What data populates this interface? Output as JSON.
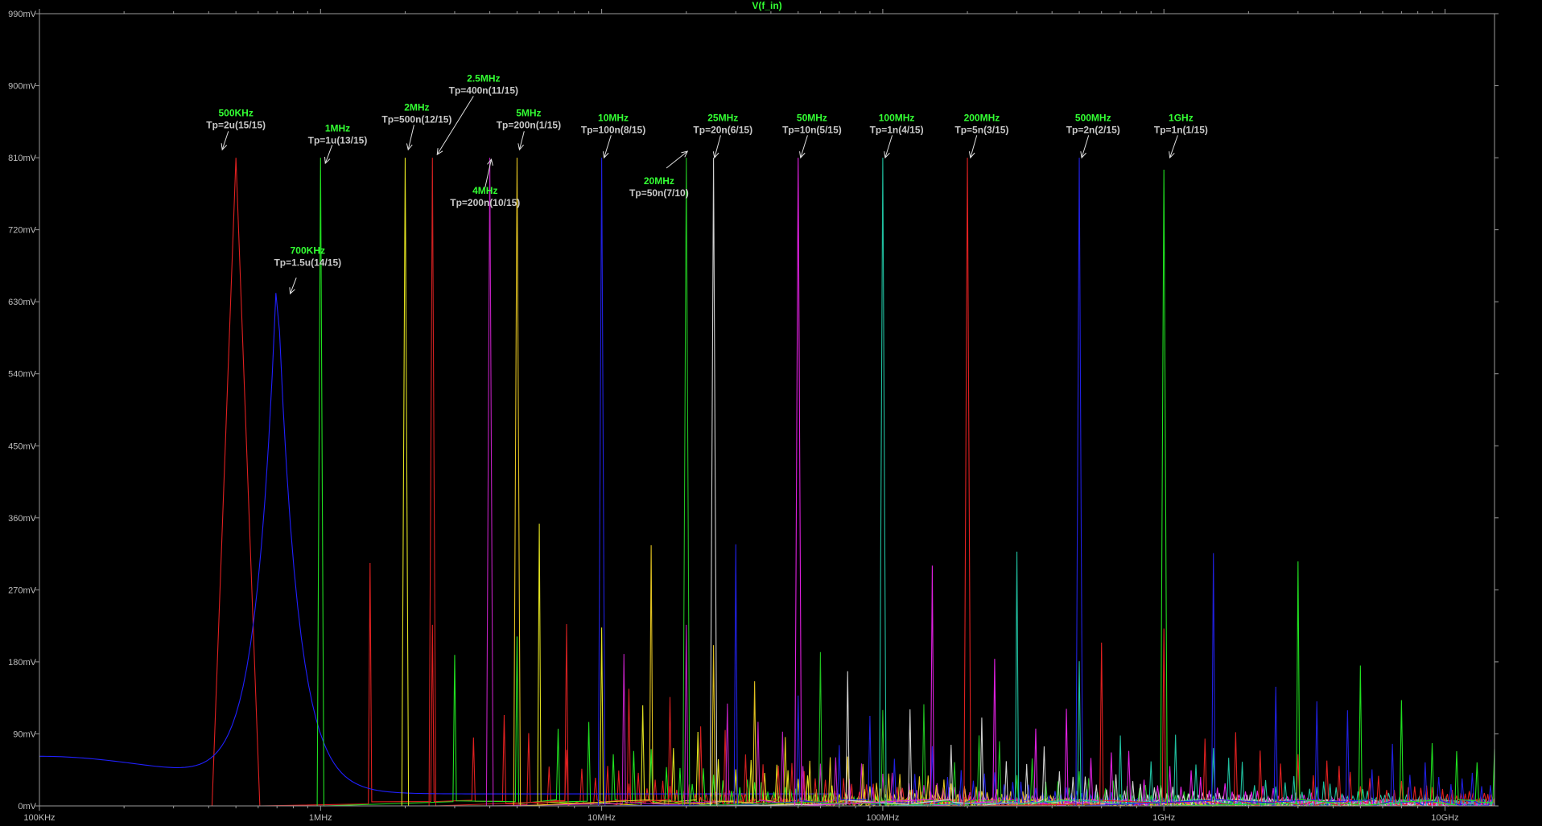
{
  "chart_data": {
    "type": "line",
    "title": "V(f_in)",
    "xlabel": "",
    "ylabel": "",
    "xscale": "log",
    "xlim": [
      100000,
      15000000000
    ],
    "ylim": [
      0,
      990
    ],
    "y_unit": "mV",
    "grid": false,
    "legend": "none",
    "y_ticks": [
      {
        "value": 0,
        "label": "0mV"
      },
      {
        "value": 90,
        "label": "90mV"
      },
      {
        "value": 180,
        "label": "180mV"
      },
      {
        "value": 270,
        "label": "270mV"
      },
      {
        "value": 360,
        "label": "360mV"
      },
      {
        "value": 450,
        "label": "450mV"
      },
      {
        "value": 540,
        "label": "540mV"
      },
      {
        "value": 630,
        "label": "630mV"
      },
      {
        "value": 720,
        "label": "720mV"
      },
      {
        "value": 810,
        "label": "810mV"
      },
      {
        "value": 900,
        "label": "900mV"
      },
      {
        "value": 990,
        "label": "990mV"
      }
    ],
    "x_ticks": [
      {
        "value": 100000,
        "label": "100KHz"
      },
      {
        "value": 1000000,
        "label": "1MHz"
      },
      {
        "value": 10000000,
        "label": "10MHz"
      },
      {
        "value": 100000000,
        "label": "100MHz"
      },
      {
        "value": 1000000000,
        "label": "1GHz"
      },
      {
        "value": 10000000000,
        "label": "10GHz"
      }
    ],
    "series": [
      {
        "color": "#e02020",
        "f0": 500000,
        "peak": 810,
        "type": "triangle",
        "lw": 0.1
      },
      {
        "color": "#2020ff",
        "f0": 700000,
        "peak": 655,
        "type": "wide"
      },
      {
        "color": "#20e020",
        "f0": 1000000,
        "peak": 810,
        "type": "narrow"
      },
      {
        "color": "#e0e020",
        "f0": 2000000,
        "peak": 810,
        "type": "narrow"
      },
      {
        "color": "#d02020",
        "f0": 2500000,
        "peak": 810,
        "type": "narrow"
      },
      {
        "color": "#c020c0",
        "f0": 4000000,
        "peak": 810,
        "type": "narrow"
      },
      {
        "color": "#e0c020",
        "f0": 5000000,
        "peak": 810,
        "type": "narrow"
      },
      {
        "color": "#2020e0",
        "f0": 10000000,
        "peak": 810,
        "type": "narrow"
      },
      {
        "color": "#20c020",
        "f0": 20000000,
        "peak": 810,
        "type": "narrow"
      },
      {
        "color": "#d0d0d0",
        "f0": 25000000,
        "peak": 810,
        "type": "narrow"
      },
      {
        "color": "#e020e0",
        "f0": 50000000,
        "peak": 810,
        "type": "narrow"
      },
      {
        "color": "#20c0a0",
        "f0": 100000000,
        "peak": 810,
        "type": "narrow"
      },
      {
        "color": "#e02020",
        "f0": 200000000,
        "peak": 810,
        "type": "narrow"
      },
      {
        "color": "#2020e0",
        "f0": 500000000,
        "peak": 810,
        "type": "narrow"
      },
      {
        "color": "#20e020",
        "f0": 1000000000,
        "peak": 795,
        "type": "narrow"
      }
    ],
    "annotations": [
      {
        "freq": "500KHz",
        "tp": "Tp=2u(15/15)",
        "lx": 500000,
        "ly": 862,
        "ax1": 470000,
        "ay1": 843,
        "ax2": 447000,
        "ay2": 820
      },
      {
        "freq": "700KHz",
        "tp": "Tp=1.5u(14/15)",
        "lx": 900000,
        "ly": 690,
        "ax1": 820000,
        "ay1": 660,
        "ax2": 780000,
        "ay2": 640
      },
      {
        "freq": "1MHz",
        "tp": "Tp=1u(13/15)",
        "lx": 1150000,
        "ly": 843,
        "ax1": 1100000,
        "ay1": 826,
        "ax2": 1040000,
        "ay2": 803
      },
      {
        "freq": "2MHz",
        "tp": "Tp=500n(12/15)",
        "lx": 2200000,
        "ly": 869,
        "ax1": 2150000,
        "ay1": 851,
        "ax2": 2050000,
        "ay2": 820
      },
      {
        "freq": "2.5MHz",
        "tp": "Tp=400n(11/15)",
        "lx": 3800000,
        "ly": 905,
        "ax1": 3500000,
        "ay1": 887,
        "ax2": 2600000,
        "ay2": 814
      },
      {
        "freq": "4MHz",
        "tp": "Tp=200n(10/15)",
        "lx": 3850000,
        "ly": 765,
        "ax1": 3850000,
        "ay1": 773,
        "ax2": 4050000,
        "ay2": 808
      },
      {
        "freq": "5MHz",
        "tp": "Tp=200n(1/15)",
        "lx": 5500000,
        "ly": 862,
        "ax1": 5300000,
        "ay1": 843,
        "ax2": 5100000,
        "ay2": 820
      },
      {
        "freq": "10MHz",
        "tp": "Tp=100n(8/15)",
        "lx": 11000000,
        "ly": 856,
        "ax1": 10800000,
        "ay1": 838,
        "ax2": 10200000,
        "ay2": 810
      },
      {
        "freq": "20MHz",
        "tp": "Tp=50n(7/10)",
        "lx": 16000000,
        "ly": 777,
        "ax1": 17000000,
        "ay1": 797,
        "ax2": 20200000,
        "ay2": 818
      },
      {
        "freq": "25MHz",
        "tp": "Tp=20n(6/15)",
        "lx": 27000000,
        "ly": 856,
        "ax1": 26500000,
        "ay1": 838,
        "ax2": 25200000,
        "ay2": 810
      },
      {
        "freq": "50MHz",
        "tp": "Tp=10n(5/15)",
        "lx": 56000000,
        "ly": 856,
        "ax1": 54000000,
        "ay1": 838,
        "ax2": 51000000,
        "ay2": 810
      },
      {
        "freq": "100MHz",
        "tp": "Tp=1n(4/15)",
        "lx": 112000000,
        "ly": 856,
        "ax1": 108000000,
        "ay1": 838,
        "ax2": 102000000,
        "ay2": 810
      },
      {
        "freq": "200MHz",
        "tp": "Tp=5n(3/15)",
        "lx": 225000000,
        "ly": 856,
        "ax1": 216000000,
        "ay1": 838,
        "ax2": 205000000,
        "ay2": 810
      },
      {
        "freq": "500MHz",
        "tp": "Tp=2n(2/15)",
        "lx": 560000000,
        "ly": 856,
        "ax1": 540000000,
        "ay1": 838,
        "ax2": 510000000,
        "ay2": 810
      },
      {
        "freq": "1GHz",
        "tp": "Tp=1n(1/15)",
        "lx": 1150000000,
        "ly": 856,
        "ax1": 1120000000,
        "ay1": 838,
        "ax2": 1050000000,
        "ay2": 810
      }
    ]
  }
}
